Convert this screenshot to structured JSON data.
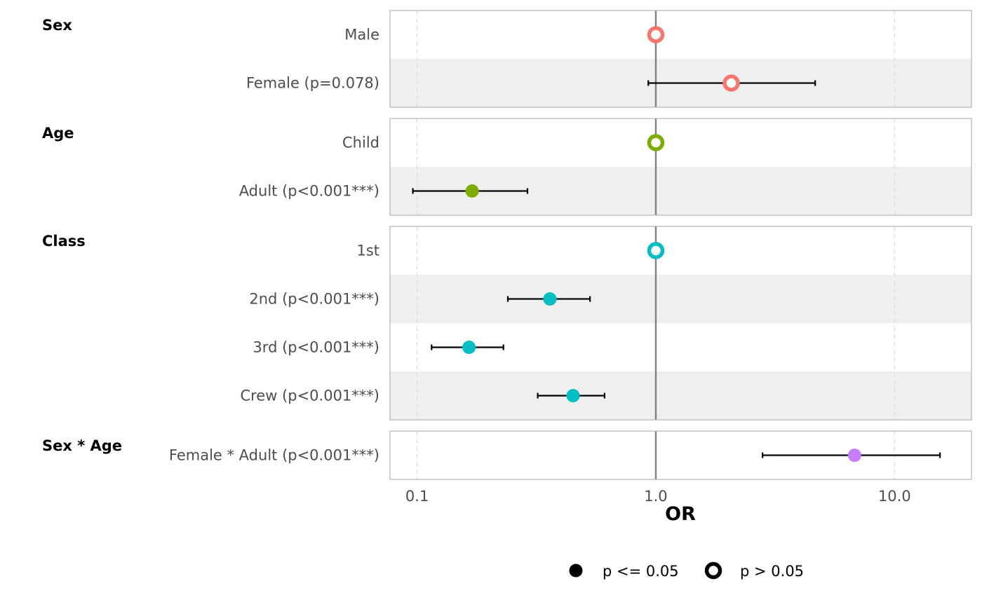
{
  "chart_data": {
    "type": "scatter",
    "subtype": "forest-plot",
    "title": "",
    "xlabel": "OR",
    "xscale": "log",
    "xlim": [
      0.077,
      21
    ],
    "x_ticks": [
      0.1,
      1.0,
      10.0
    ],
    "x_tick_labels": [
      "0.1",
      "1.0",
      "10.0"
    ],
    "reference_line": 1.0,
    "grid": "vertical dashed at ticks",
    "groups": [
      {
        "name": "Sex",
        "color": "#f8766d",
        "rows": [
          {
            "label": "Male",
            "or": 1.0,
            "ci": null,
            "significant": false
          },
          {
            "label": "Female (p=0.078)",
            "or": 2.07,
            "ci": [
              0.93,
              4.65
            ],
            "significant": false
          }
        ]
      },
      {
        "name": "Age",
        "color": "#7cae00",
        "rows": [
          {
            "label": "Child",
            "or": 1.0,
            "ci": null,
            "significant": false
          },
          {
            "label": "Adult (p<0.001***)",
            "or": 0.17,
            "ci": [
              0.096,
              0.29
            ],
            "significant": true
          }
        ]
      },
      {
        "name": "Class",
        "color": "#00bfc4",
        "rows": [
          {
            "label": "1st",
            "or": 1.0,
            "ci": null,
            "significant": false
          },
          {
            "label": "2nd (p<0.001***)",
            "or": 0.36,
            "ci": [
              0.24,
              0.53
            ],
            "significant": true
          },
          {
            "label": "3rd (p<0.001***)",
            "or": 0.165,
            "ci": [
              0.115,
              0.23
            ],
            "significant": true
          },
          {
            "label": "Crew (p<0.001***)",
            "or": 0.45,
            "ci": [
              0.32,
              0.61
            ],
            "significant": true
          }
        ]
      },
      {
        "name": "Sex * Age",
        "color": "#c77cff",
        "rows": [
          {
            "label": "Female * Adult (p<0.001***)",
            "or": 6.8,
            "ci": [
              2.8,
              15.5
            ],
            "significant": true
          }
        ]
      }
    ],
    "legend": {
      "placement": "bottom",
      "items": [
        {
          "label": "p <= 0.05",
          "shape": "filled-circle"
        },
        {
          "label": "p > 0.05",
          "shape": "hollow-circle"
        }
      ]
    }
  }
}
